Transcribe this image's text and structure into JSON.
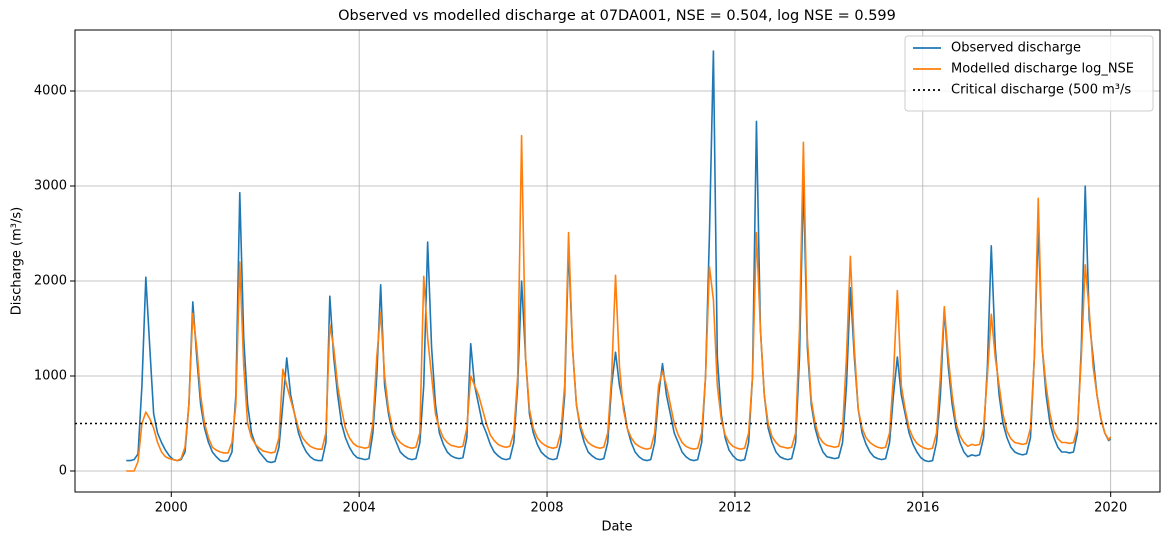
{
  "chart_data": {
    "type": "line",
    "title": "Observed vs modelled discharge at 07DA001, NSE = 0.504, log NSE = 0.599",
    "xlabel": "Date",
    "ylabel": "Discharge (m³/s)",
    "xlim": [
      1997.95,
      2021.05
    ],
    "xticks": [
      2000,
      2004,
      2008,
      2012,
      2016,
      2020
    ],
    "ylim": [
      -221,
      4642
    ],
    "yticks": [
      0,
      1000,
      2000,
      3000,
      4000
    ],
    "grid": true,
    "legend": "upper right",
    "x": [
      1999.042,
      1999.125,
      1999.208,
      1999.292,
      1999.375,
      1999.458,
      1999.542,
      1999.625,
      1999.708,
      1999.792,
      1999.875,
      1999.958,
      2000.042,
      2000.125,
      2000.208,
      2000.292,
      2000.375,
      2000.458,
      2000.542,
      2000.625,
      2000.708,
      2000.792,
      2000.875,
      2000.958,
      2001.042,
      2001.125,
      2001.208,
      2001.292,
      2001.375,
      2001.458,
      2001.542,
      2001.625,
      2001.708,
      2001.792,
      2001.875,
      2001.958,
      2002.042,
      2002.125,
      2002.208,
      2002.292,
      2002.375,
      2002.458,
      2002.542,
      2002.625,
      2002.708,
      2002.792,
      2002.875,
      2002.958,
      2003.042,
      2003.125,
      2003.208,
      2003.292,
      2003.375,
      2003.458,
      2003.542,
      2003.625,
      2003.708,
      2003.792,
      2003.875,
      2003.958,
      2004.042,
      2004.125,
      2004.208,
      2004.292,
      2004.375,
      2004.458,
      2004.542,
      2004.625,
      2004.708,
      2004.792,
      2004.875,
      2004.958,
      2005.042,
      2005.125,
      2005.208,
      2005.292,
      2005.375,
      2005.458,
      2005.542,
      2005.625,
      2005.708,
      2005.792,
      2005.875,
      2005.958,
      2006.042,
      2006.125,
      2006.208,
      2006.292,
      2006.375,
      2006.458,
      2006.542,
      2006.625,
      2006.708,
      2006.792,
      2006.875,
      2006.958,
      2007.042,
      2007.125,
      2007.208,
      2007.292,
      2007.375,
      2007.458,
      2007.542,
      2007.625,
      2007.708,
      2007.792,
      2007.875,
      2007.958,
      2008.042,
      2008.125,
      2008.208,
      2008.292,
      2008.375,
      2008.458,
      2008.542,
      2008.625,
      2008.708,
      2008.792,
      2008.875,
      2008.958,
      2009.042,
      2009.125,
      2009.208,
      2009.292,
      2009.375,
      2009.458,
      2009.542,
      2009.625,
      2009.708,
      2009.792,
      2009.875,
      2009.958,
      2010.042,
      2010.125,
      2010.208,
      2010.292,
      2010.375,
      2010.458,
      2010.542,
      2010.625,
      2010.708,
      2010.792,
      2010.875,
      2010.958,
      2011.042,
      2011.125,
      2011.208,
      2011.292,
      2011.375,
      2011.458,
      2011.542,
      2011.625,
      2011.708,
      2011.792,
      2011.875,
      2011.958,
      2012.042,
      2012.125,
      2012.208,
      2012.292,
      2012.375,
      2012.458,
      2012.542,
      2012.625,
      2012.708,
      2012.792,
      2012.875,
      2012.958,
      2013.042,
      2013.125,
      2013.208,
      2013.292,
      2013.375,
      2013.458,
      2013.542,
      2013.625,
      2013.708,
      2013.792,
      2013.875,
      2013.958,
      2014.042,
      2014.125,
      2014.208,
      2014.292,
      2014.375,
      2014.458,
      2014.542,
      2014.625,
      2014.708,
      2014.792,
      2014.875,
      2014.958,
      2015.042,
      2015.125,
      2015.208,
      2015.292,
      2015.375,
      2015.458,
      2015.542,
      2015.625,
      2015.708,
      2015.792,
      2015.875,
      2015.958,
      2016.042,
      2016.125,
      2016.208,
      2016.292,
      2016.375,
      2016.458,
      2016.542,
      2016.625,
      2016.708,
      2016.792,
      2016.875,
      2016.958,
      2017.042,
      2017.125,
      2017.208,
      2017.292,
      2017.375,
      2017.458,
      2017.542,
      2017.625,
      2017.708,
      2017.792,
      2017.875,
      2017.958,
      2018.042,
      2018.125,
      2018.208,
      2018.292,
      2018.375,
      2018.458,
      2018.542,
      2018.625,
      2018.708,
      2018.792,
      2018.875,
      2018.958,
      2019.042,
      2019.125,
      2019.208,
      2019.292,
      2019.375,
      2019.458,
      2019.542,
      2019.625,
      2019.708,
      2019.792,
      2019.875,
      2019.958,
      2020.0
    ],
    "series": [
      {
        "name": "Observed discharge",
        "color": "#1f77b4",
        "values": [
          110,
          110,
          120,
          180,
          900,
          2040,
          1300,
          600,
          400,
          300,
          220,
          160,
          120,
          110,
          120,
          200,
          700,
          1780,
          1200,
          700,
          450,
          300,
          200,
          150,
          110,
          100,
          110,
          200,
          800,
          2930,
          1400,
          700,
          400,
          280,
          200,
          150,
          100,
          90,
          100,
          250,
          700,
          1190,
          800,
          600,
          400,
          280,
          200,
          150,
          120,
          110,
          110,
          300,
          1840,
          1200,
          800,
          500,
          350,
          250,
          180,
          140,
          130,
          120,
          130,
          400,
          1000,
          1960,
          900,
          600,
          400,
          300,
          200,
          160,
          130,
          120,
          130,
          300,
          900,
          2410,
          1300,
          700,
          400,
          280,
          200,
          160,
          140,
          130,
          140,
          350,
          1340,
          900,
          700,
          500,
          400,
          280,
          200,
          160,
          130,
          120,
          130,
          300,
          900,
          2000,
          1200,
          600,
          400,
          280,
          200,
          160,
          130,
          120,
          130,
          300,
          800,
          2350,
          1300,
          700,
          450,
          300,
          200,
          160,
          130,
          120,
          130,
          300,
          900,
          1250,
          900,
          700,
          450,
          300,
          200,
          150,
          120,
          110,
          120,
          300,
          800,
          1130,
          800,
          600,
          400,
          300,
          200,
          150,
          120,
          110,
          120,
          300,
          1000,
          2500,
          4420,
          1200,
          600,
          350,
          220,
          160,
          120,
          110,
          120,
          300,
          1000,
          3680,
          1500,
          800,
          450,
          300,
          200,
          150,
          130,
          120,
          130,
          300,
          1200,
          3050,
          1300,
          700,
          450,
          300,
          200,
          150,
          140,
          130,
          140,
          300,
          900,
          1930,
          1200,
          650,
          400,
          280,
          200,
          150,
          130,
          120,
          130,
          300,
          800,
          1200,
          800,
          600,
          400,
          280,
          200,
          140,
          110,
          100,
          110,
          300,
          800,
          1700,
          1100,
          700,
          450,
          300,
          200,
          150,
          170,
          160,
          170,
          350,
          1100,
          2370,
          1300,
          800,
          500,
          350,
          250,
          200,
          180,
          170,
          180,
          350,
          1200,
          2580,
          1300,
          800,
          500,
          350,
          250,
          200,
          200,
          190,
          200,
          400,
          1300,
          3000,
          1600,
          1200,
          800,
          550,
          400,
          320,
          340
        ]
      },
      {
        "name": "Modelled discharge log_NSE",
        "color": "#ff7f0e",
        "values": [
          0,
          0,
          0,
          100,
          500,
          620,
          550,
          450,
          300,
          200,
          150,
          130,
          120,
          110,
          130,
          250,
          700,
          1660,
          1300,
          800,
          500,
          350,
          250,
          220,
          200,
          190,
          190,
          300,
          700,
          2200,
          1100,
          500,
          350,
          280,
          240,
          210,
          200,
          190,
          200,
          350,
          1070,
          900,
          750,
          600,
          450,
          350,
          300,
          260,
          240,
          230,
          230,
          400,
          1540,
          1300,
          900,
          650,
          450,
          350,
          290,
          260,
          250,
          240,
          250,
          500,
          1200,
          1670,
          1000,
          650,
          450,
          350,
          300,
          270,
          250,
          240,
          250,
          400,
          2050,
          1400,
          1000,
          600,
          450,
          350,
          300,
          270,
          260,
          250,
          260,
          450,
          1000,
          900,
          800,
          650,
          500,
          380,
          320,
          280,
          260,
          250,
          260,
          400,
          1000,
          3530,
          1200,
          650,
          450,
          350,
          300,
          270,
          250,
          240,
          250,
          400,
          900,
          2510,
          1300,
          700,
          480,
          360,
          300,
          270,
          250,
          240,
          250,
          400,
          1000,
          2060,
          1100,
          650,
          450,
          350,
          290,
          260,
          240,
          230,
          240,
          400,
          900,
          1050,
          900,
          700,
          500,
          380,
          300,
          260,
          240,
          230,
          240,
          400,
          1000,
          2150,
          1800,
          900,
          550,
          380,
          300,
          260,
          240,
          230,
          240,
          400,
          1000,
          2510,
          1500,
          800,
          500,
          360,
          300,
          260,
          250,
          240,
          250,
          400,
          1500,
          3460,
          1400,
          750,
          500,
          360,
          300,
          270,
          260,
          250,
          260,
          450,
          1200,
          2260,
          1300,
          650,
          450,
          350,
          300,
          270,
          250,
          240,
          250,
          400,
          1000,
          1900,
          900,
          650,
          450,
          350,
          290,
          260,
          240,
          230,
          240,
          400,
          1000,
          1730,
          1200,
          800,
          500,
          370,
          300,
          260,
          280,
          270,
          280,
          450,
          1000,
          1650,
          1200,
          900,
          600,
          420,
          340,
          300,
          290,
          280,
          290,
          450,
          1200,
          2870,
          1300,
          900,
          600,
          420,
          340,
          300,
          300,
          290,
          300,
          450,
          1200,
          2170,
          1700,
          1100,
          800,
          550,
          400,
          330,
          360
        ]
      }
    ],
    "hline": {
      "name": "Critical discharge (500 m³/s",
      "value": 500,
      "color": "#000000",
      "style": "dotted"
    }
  }
}
